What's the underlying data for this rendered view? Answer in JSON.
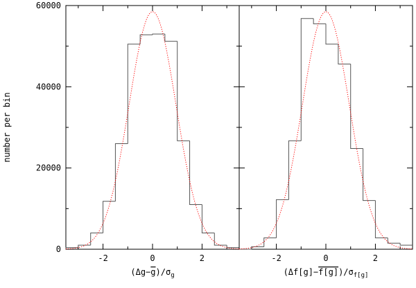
{
  "chart_data": [
    {
      "type": "histogram",
      "panel": "left",
      "xlabel_parts": {
        "open": "(",
        "delta": "Δg",
        "minus": "−",
        "gbar": "g",
        "close": ")/",
        "sigma": "σ",
        "sub": "g"
      },
      "ylabel": "number per bin",
      "xlim": [
        -3.5,
        3.5
      ],
      "ylim": [
        0,
        60000
      ],
      "yticks": [
        0,
        20000,
        40000,
        60000
      ],
      "ytick_labels": [
        "0",
        "20000",
        "40000",
        "60000"
      ],
      "xticks": [
        -2,
        0,
        2
      ],
      "xtick_labels": [
        "-2",
        "0",
        "2"
      ],
      "bin_edges": [
        -3.5,
        -3.0,
        -2.5,
        -2.0,
        -1.5,
        -1.0,
        -0.5,
        0.0,
        0.5,
        1.0,
        1.5,
        2.0,
        2.5,
        3.0,
        3.5
      ],
      "counts": [
        400,
        1000,
        4000,
        11800,
        26000,
        50500,
        52800,
        53000,
        51200,
        26700,
        11000,
        4000,
        1000,
        400
      ],
      "fit": {
        "style": "dotted",
        "color": "#ff0000",
        "peak": 58500,
        "mean": 0,
        "sigma": 0.95
      }
    },
    {
      "type": "histogram",
      "panel": "right",
      "xlabel_parts": {
        "open": "(",
        "delta": "Δf[g]",
        "minus": "−",
        "fbar": "f[g]",
        "close": ")/",
        "sigma": "σ",
        "sub": "f[g]"
      },
      "xlim": [
        -3.5,
        3.5
      ],
      "ylim": [
        0,
        60000
      ],
      "xticks": [
        -2,
        0,
        2
      ],
      "xtick_labels": [
        "-2",
        "0",
        "2"
      ],
      "bin_edges": [
        -3.5,
        -3.0,
        -2.5,
        -2.0,
        -1.5,
        -1.0,
        -0.5,
        0.0,
        0.5,
        1.0,
        1.5,
        2.0,
        2.5,
        3.0,
        3.5
      ],
      "counts": [
        0,
        600,
        2800,
        12200,
        26700,
        56800,
        55500,
        50500,
        45600,
        24800,
        12000,
        2800,
        1500,
        1000
      ],
      "fit": {
        "style": "dotted",
        "color": "#ff0000",
        "peak": 58500,
        "mean": 0,
        "sigma": 0.95
      }
    }
  ],
  "colors": {
    "histogram": "#555555",
    "fit": "#ff0000",
    "frame": "#000000"
  }
}
